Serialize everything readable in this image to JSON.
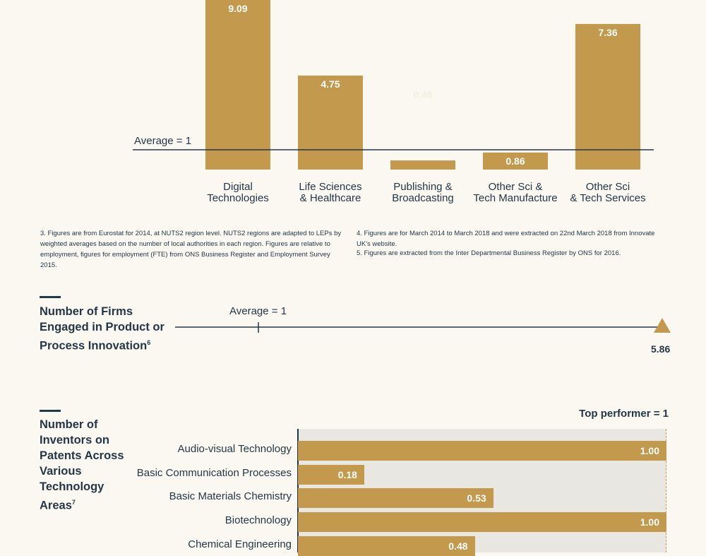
{
  "colors": {
    "accent": "#c2994d",
    "text": "#243746",
    "background": "#fbf8f1",
    "track": "#e9e7e2"
  },
  "chart_data": [
    {
      "type": "bar",
      "categories": [
        [
          "Digital",
          "Technologies"
        ],
        [
          "Life Sciences",
          "& Healthcare"
        ],
        [
          "Publishing &",
          "Broadcasting"
        ],
        [
          "Other Sci &",
          "Tech Manufacture"
        ],
        [
          "Other Sci",
          "& Tech Services"
        ]
      ],
      "values": [
        9.09,
        4.75,
        0.46,
        0.86,
        7.36
      ],
      "value_labels": [
        "9.09",
        "4.75",
        "",
        "0.86",
        "7.36"
      ],
      "faint_label": "0.46",
      "reference_line": {
        "value": 1,
        "label": "Average = 1"
      }
    },
    {
      "type": "bar",
      "orientation": "horizontal",
      "title": [
        "Number of",
        "Inventors on",
        "Patents Across",
        "Various",
        "Technology",
        "Areas"
      ],
      "title_footnote": "7",
      "reference_label": "Top performer = 1",
      "xlim": [
        0,
        1
      ],
      "categories": [
        "Audio-visual Technology",
        "Basic Communication Processes",
        "Basic Materials Chemistry",
        "Biotechnology",
        "Chemical Engineering"
      ],
      "values": [
        1.0,
        0.18,
        0.53,
        1.0,
        0.48
      ],
      "value_labels": [
        "1.00",
        "0.18",
        "0.53",
        "1.00",
        "0.48"
      ]
    }
  ],
  "footnotes": {
    "left": "3. Figures are from Eurostat for 2014, at NUTS2 region level. NUTS2 regions are adapted to LEPs by weighted averages based on the number of local authorities in each region. Figures are relative to employment, figures for employment (FTE) from ONS Business Register and Employment Survey 2015.",
    "right_1": "4. Figures are for March 2014 to March 2018 and were extracted on 22nd March 2018 from Innovate UK's website.",
    "right_2": "5. Figures are extracted from the Inter Departmental Business Register by ONS for 2016."
  },
  "firms": {
    "title": [
      "Number of Firms",
      "Engaged in Product or",
      "Process Innovation"
    ],
    "title_footnote": "6",
    "average_label": "Average = 1",
    "value": 5.86,
    "value_label": "5.86",
    "scale_max": 5.86
  }
}
